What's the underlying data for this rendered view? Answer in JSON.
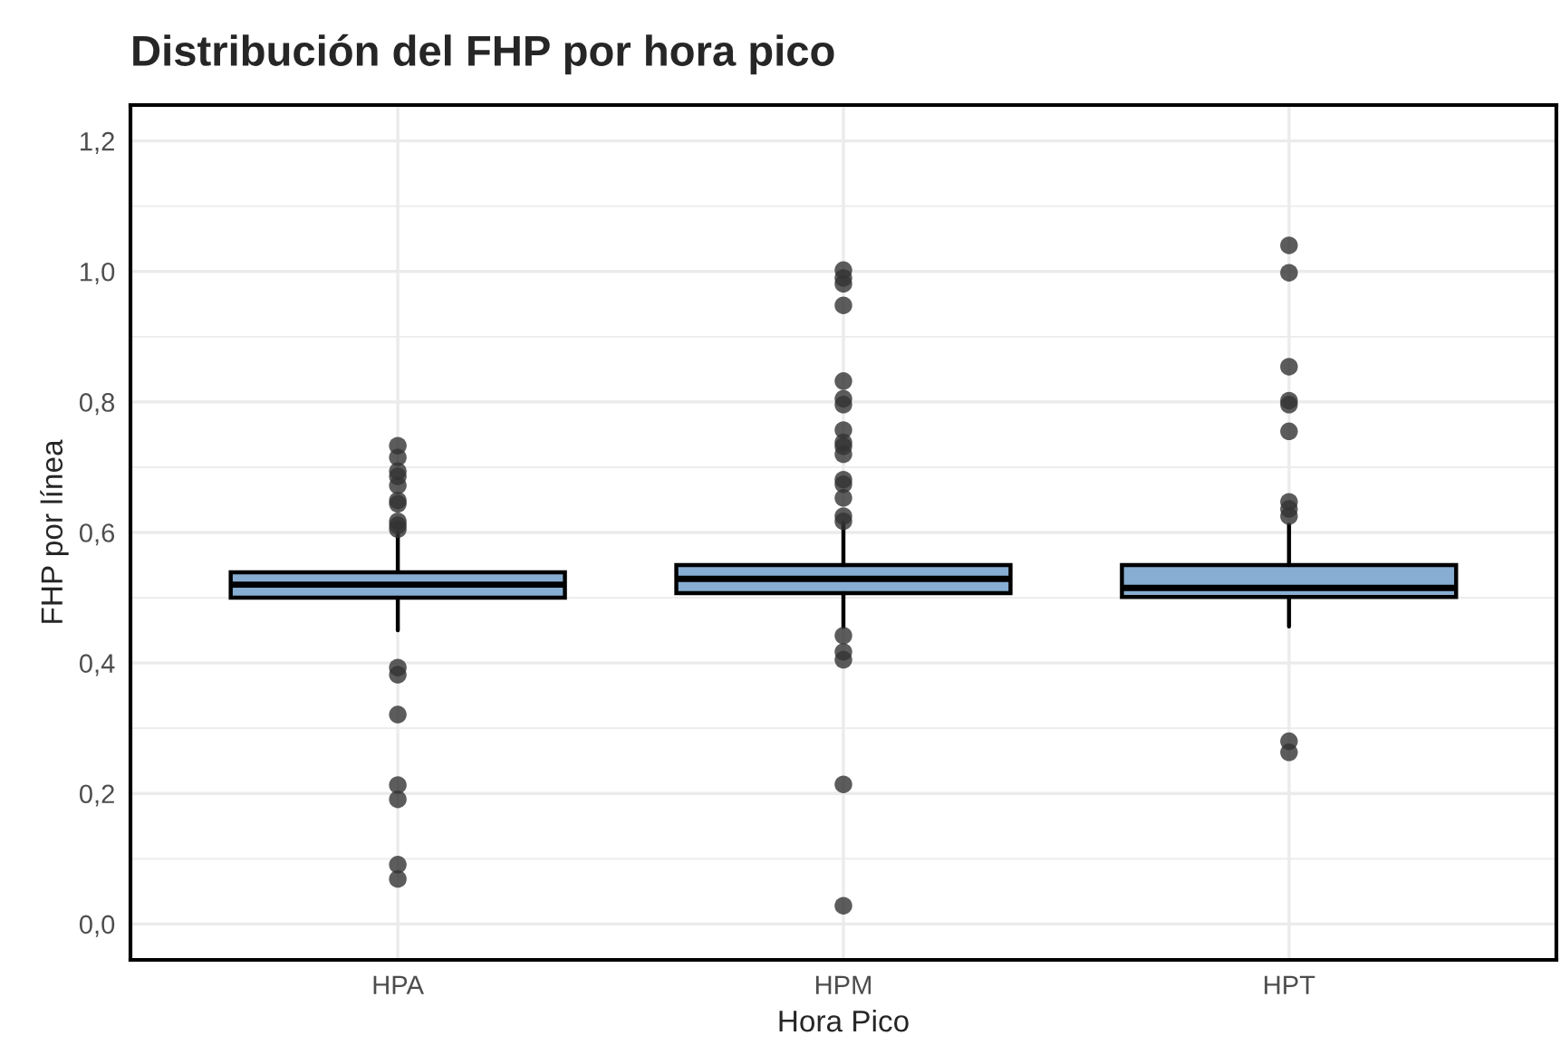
{
  "chart_data": {
    "type": "box",
    "title": "Distribución del FHP por hora pico",
    "xlabel": "Hora Pico",
    "ylabel": "FHP por línea",
    "categories": [
      "HPA",
      "HPM",
      "HPT"
    ],
    "series": [
      {
        "color": "#87aed2",
        "boxes": [
          {
            "low": 0.45,
            "q1": 0.5,
            "median": 0.52,
            "q3": 0.539,
            "high": 0.6,
            "outliers": [
              0.733,
              0.715,
              0.694,
              0.686,
              0.672,
              0.649,
              0.644,
              0.617,
              0.611,
              0.605,
              0.393,
              0.382,
              0.321,
              0.213,
              0.191,
              0.091,
              0.069
            ]
          },
          {
            "low": 0.455,
            "q1": 0.507,
            "median": 0.529,
            "q3": 0.55,
            "high": 0.615,
            "outliers": [
              1.002,
              0.99,
              0.981,
              0.948,
              0.832,
              0.805,
              0.796,
              0.757,
              0.738,
              0.732,
              0.72,
              0.681,
              0.674,
              0.653,
              0.625,
              0.617,
              0.442,
              0.417,
              0.405,
              0.214,
              0.028
            ]
          },
          {
            "low": 0.456,
            "q1": 0.501,
            "median": 0.515,
            "q3": 0.55,
            "high": 0.612,
            "outliers": [
              1.04,
              0.998,
              0.854,
              0.802,
              0.796,
              0.755,
              0.647,
              0.636,
              0.625,
              0.28,
              0.263
            ]
          }
        ]
      }
    ],
    "ylim": [
      -0.055,
      1.255
    ],
    "yticks": [
      {
        "value": 0,
        "label": "0,0"
      },
      {
        "value": 0.2,
        "label": "0,2"
      },
      {
        "value": 0.4,
        "label": "0,4"
      },
      {
        "value": 0.6,
        "label": "0,6"
      },
      {
        "value": 0.8,
        "label": "0,8"
      },
      {
        "value": 1.0,
        "label": "1,0"
      },
      {
        "value": 1.2,
        "label": "1,2"
      }
    ],
    "grid": true
  }
}
